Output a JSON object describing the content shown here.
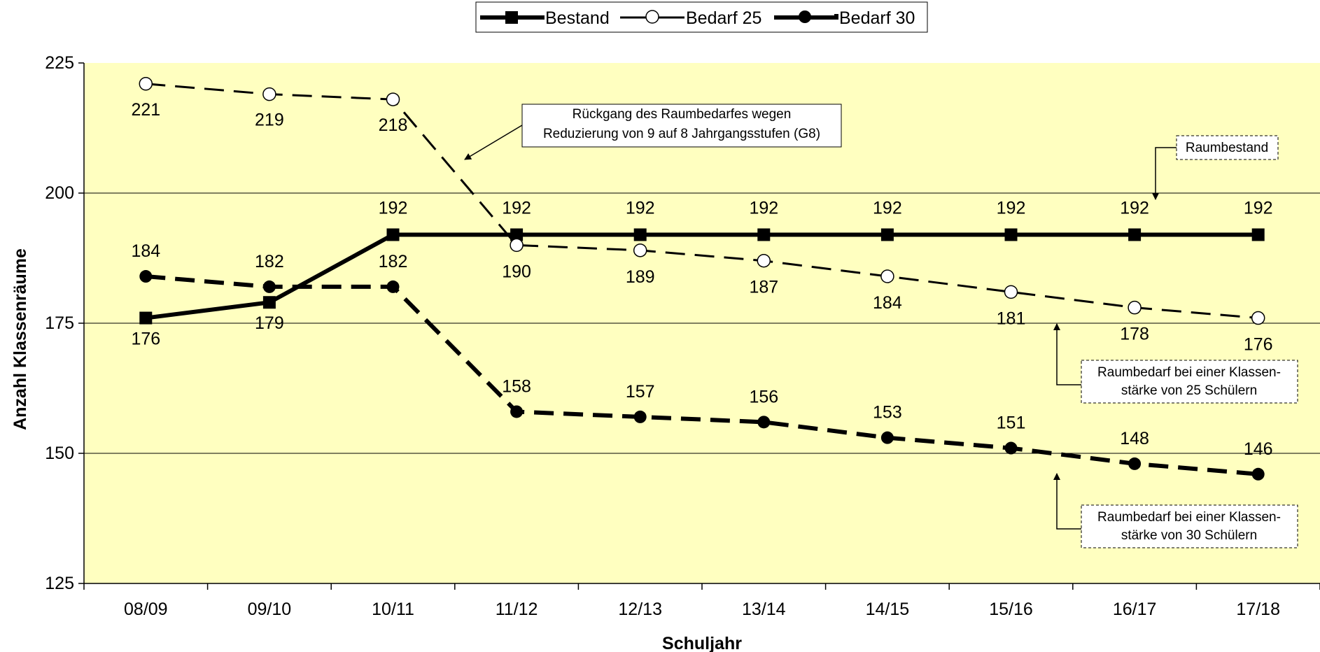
{
  "chart_data": {
    "type": "line",
    "categories": [
      "08/09",
      "09/10",
      "10/11",
      "11/12",
      "12/13",
      "13/14",
      "14/15",
      "15/16",
      "16/17",
      "17/18"
    ],
    "series": [
      {
        "name": "Bestand",
        "values": [
          176,
          179,
          192,
          192,
          192,
          192,
          192,
          192,
          192,
          192
        ],
        "style": "solid",
        "marker": "square"
      },
      {
        "name": "Bedarf 25",
        "values": [
          221,
          219,
          218,
          190,
          189,
          187,
          184,
          181,
          178,
          176
        ],
        "style": "dashed",
        "marker": "open-circle"
      },
      {
        "name": "Bedarf 30",
        "values": [
          184,
          182,
          182,
          158,
          157,
          156,
          153,
          151,
          148,
          146
        ],
        "style": "dashed",
        "marker": "filled-circle"
      }
    ],
    "data_labels": {
      "Bestand": [
        "176",
        "179",
        "192",
        "192",
        "192",
        "192",
        "192",
        "192",
        "192",
        "192"
      ],
      "Bedarf 25": [
        "221",
        "219",
        "218",
        "190",
        "189",
        "187",
        "184",
        "181",
        "178",
        "176"
      ],
      "Bedarf 30": [
        "184",
        "182",
        "182",
        "158",
        "157",
        "156",
        "153",
        "151",
        "148",
        "146"
      ]
    },
    "xlabel": "Schuljahr",
    "ylabel": "Anzahl Klassenräume",
    "ylim": [
      125,
      225
    ],
    "yticks": [
      "125",
      "150",
      "175",
      "200",
      "225"
    ],
    "grid": true,
    "legend_placement": "top-center",
    "annotations": {
      "g8": [
        "Rückgang des Raumbedarfes wegen",
        "Reduzierung von 9 auf 8 Jahrgangsstufen (G8)"
      ],
      "bestand": [
        "Raumbestand"
      ],
      "bedarf25": [
        "Raumbedarf bei einer Klassen-",
        "stärke von 25 Schülern"
      ],
      "bedarf30": [
        "Raumbedarf bei einer Klassen-",
        "stärke von 30 Schülern"
      ]
    },
    "colors": {
      "plot_background": "#ffffc0",
      "line": "#000000",
      "grid": "#000000"
    }
  }
}
